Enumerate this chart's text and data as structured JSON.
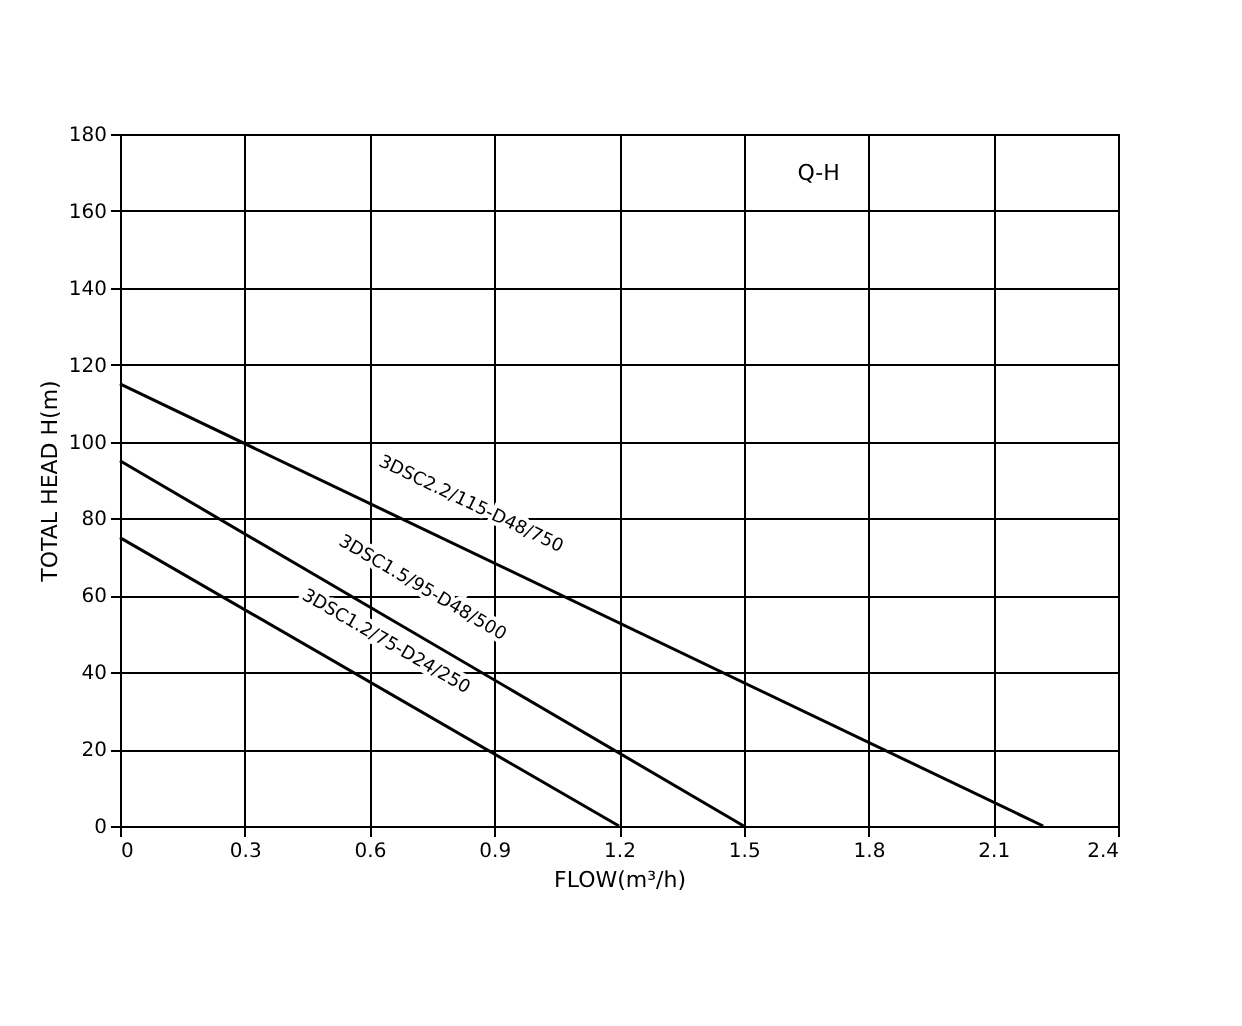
{
  "chart_data": {
    "type": "line",
    "xlabel": "FLOW(m³/h)",
    "ylabel": "TOTAL HEAD H(m)",
    "xlim": [
      0,
      2.4
    ],
    "xticks": [
      0,
      0.3,
      0.6,
      0.9,
      1.2,
      1.5,
      1.8,
      2.1,
      2.4
    ],
    "ylim": [
      0,
      180
    ],
    "yticks": [
      0,
      20,
      40,
      60,
      80,
      100,
      120,
      140,
      160,
      180
    ],
    "grid": true,
    "marker": "none",
    "line_style": "solid",
    "annotations": [
      "Q-H"
    ],
    "series": [
      {
        "name": "3DSC2.2/115-D48/750",
        "color": "#000000",
        "x": [
          0,
          2.22
        ],
        "values": [
          115,
          0
        ]
      },
      {
        "name": "3DSC1.5/95-D48/500",
        "color": "#000000",
        "x": [
          0,
          1.5
        ],
        "values": [
          95,
          0
        ]
      },
      {
        "name": "3DSC1.2/75-D24/250",
        "color": "#000000",
        "x": [
          0,
          1.2
        ],
        "values": [
          75,
          0
        ]
      }
    ]
  }
}
